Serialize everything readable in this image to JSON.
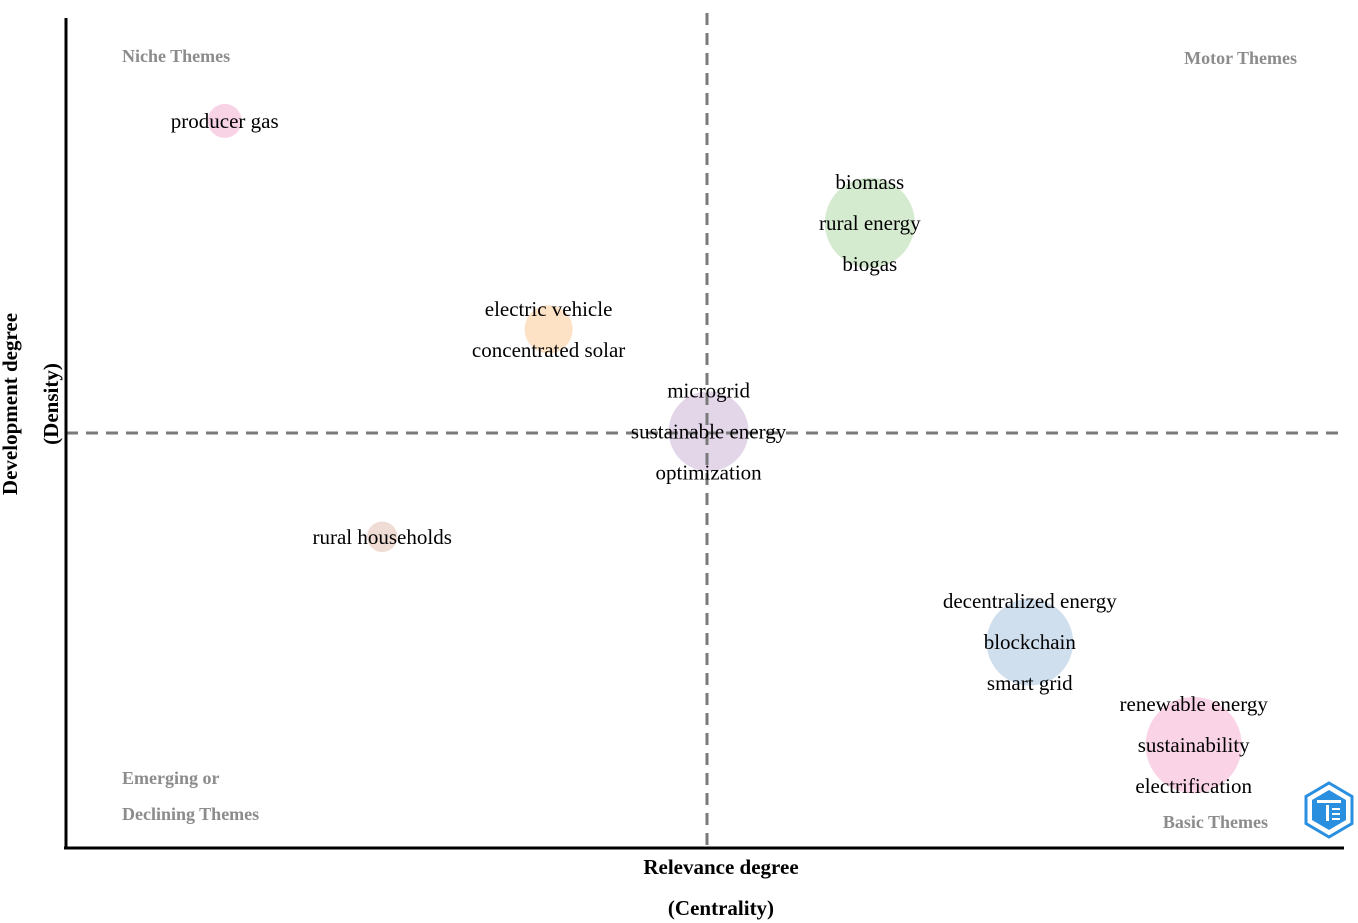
{
  "chart_data": {
    "type": "scatter",
    "title": "",
    "xlabel": [
      "Relevance degree",
      "(Centrality)"
    ],
    "ylabel": [
      "Development degree",
      "(Density)"
    ],
    "quadrants": {
      "top_left": [
        "Niche Themes"
      ],
      "top_right": [
        "Motor Themes"
      ],
      "bottom_left": [
        "Emerging or",
        "Declining Themes"
      ],
      "bottom_right": [
        "Basic Themes"
      ]
    },
    "xlim": [
      0,
      1
    ],
    "ylim": [
      0,
      1
    ],
    "divider": {
      "x": 0.5,
      "y": 0.5
    },
    "grid": false,
    "clusters": [
      {
        "id": "producer-gas",
        "x": 0.124,
        "y": 0.876,
        "size": 1,
        "color": "#f8d3e6",
        "labels": [
          "producer gas"
        ]
      },
      {
        "id": "biomass",
        "x": 0.628,
        "y": 0.753,
        "size": 7,
        "color": "#d5ebd0",
        "labels": [
          "biomass",
          "rural energy",
          "biogas"
        ]
      },
      {
        "id": "electric-vehicle",
        "x": 0.377,
        "y": 0.625,
        "size": 2,
        "color": "#fde2c6",
        "labels": [
          "electric vehicle",
          "concentrated solar"
        ]
      },
      {
        "id": "microgrid",
        "x": 0.502,
        "y": 0.502,
        "size": 5.5,
        "color": "#e3d6e9",
        "labels": [
          "microgrid",
          "sustainable energy",
          "optimization"
        ]
      },
      {
        "id": "rural-households",
        "x": 0.247,
        "y": 0.375,
        "size": 0.8,
        "color": "#efdcd4",
        "labels": [
          "rural households"
        ]
      },
      {
        "id": "decentralized-energy",
        "x": 0.753,
        "y": 0.248,
        "size": 6.5,
        "color": "#d0dfee",
        "labels": [
          "decentralized energy",
          "blockchain",
          "smart grid"
        ]
      },
      {
        "id": "renewable-energy",
        "x": 0.881,
        "y": 0.124,
        "size": 8,
        "color": "#fad4e6",
        "labels": [
          "renewable energy",
          "sustainability",
          "electrification"
        ]
      }
    ]
  }
}
